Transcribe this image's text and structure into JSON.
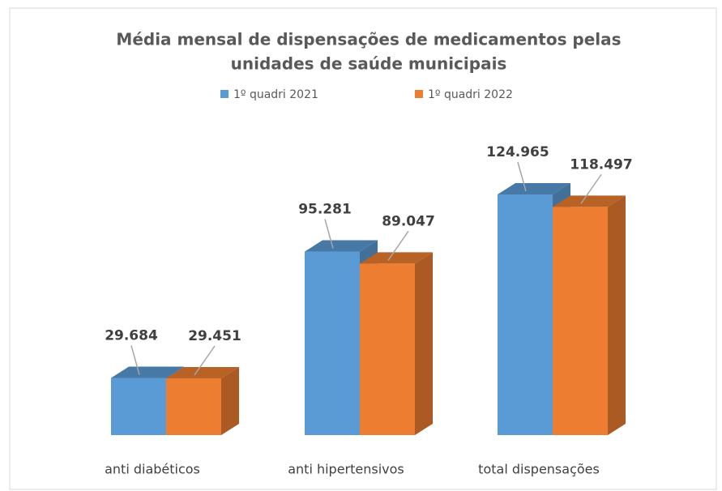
{
  "chart_data": {
    "type": "bar3d",
    "title": [
      "Média mensal de dispensações de medicamentos pelas",
      "unidades de saúde municipais"
    ],
    "categories": [
      "anti diabéticos",
      "anti hipertensivos",
      "total dispensações"
    ],
    "series": [
      {
        "name": "1º quadri 2021",
        "color": "#5b9bd5",
        "values": [
          29684,
          95281,
          124965
        ],
        "value_labels": [
          "29.684",
          "95.281",
          "124.965"
        ]
      },
      {
        "name": "1º quadri 2022",
        "color": "#ed7d31",
        "values": [
          29451,
          89047,
          118497
        ],
        "value_labels": [
          "29.451",
          "89.047",
          "118.497"
        ]
      }
    ],
    "legend": "top"
  }
}
